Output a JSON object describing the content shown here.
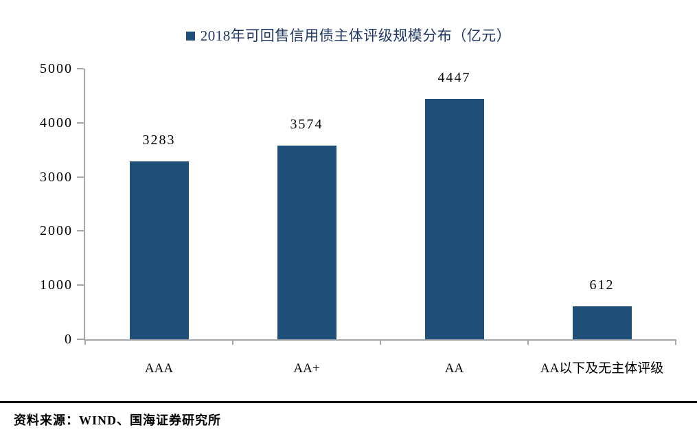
{
  "legend": {
    "marker_color": "#1F4E79",
    "label": "2018年可回售信用债主体评级规模分布（亿元）"
  },
  "chart_data": {
    "type": "bar",
    "categories": [
      "AAA",
      "AA+",
      "AA",
      "AA以下及无主体评级"
    ],
    "values": [
      3283,
      3574,
      4447,
      612
    ],
    "title": "2018年可回售信用债主体评级规模分布（亿元）",
    "xlabel": "",
    "ylabel": "",
    "ylim": [
      0,
      5000
    ],
    "yticks": [
      0,
      1000,
      2000,
      3000,
      4000,
      5000
    ],
    "bar_color": "#1F4E79",
    "grid": false,
    "legend_position": "top-center",
    "data_labels": true
  },
  "footer": {
    "source_label": "资料来源：WIND、国海证券研究所"
  },
  "colors": {
    "bar": "#1F4E79",
    "title_text": "#1F3864",
    "axis_line": "#A6A6A6",
    "label_text": "#000000",
    "separator": "#000000",
    "background": "#FFFFFF"
  }
}
